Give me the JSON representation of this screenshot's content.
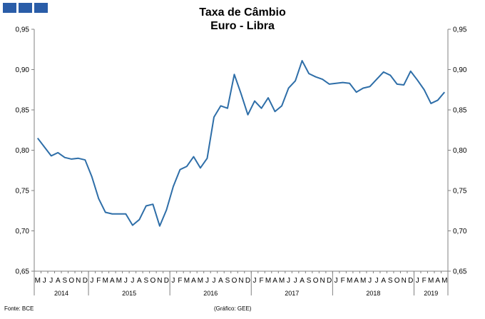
{
  "header": {
    "title_line1": "Taxa de Câmbio",
    "title_line2": "Euro - Libra"
  },
  "footer": {
    "source": "Fonte: BCE",
    "credit": "(Gráfico: GEE)"
  },
  "chart_data": {
    "type": "line",
    "title": "Taxa de Câmbio Euro - Libra",
    "ylim": [
      0.65,
      0.95
    ],
    "yticks": [
      "0,65",
      "0,70",
      "0,75",
      "0,80",
      "0,85",
      "0,90",
      "0,95"
    ],
    "ytick_values": [
      0.65,
      0.7,
      0.75,
      0.8,
      0.85,
      0.9,
      0.95
    ],
    "grid": false,
    "line_color": "#2e6ea8",
    "x": [
      "M",
      "J",
      "J",
      "A",
      "S",
      "O",
      "N",
      "D",
      "J",
      "F",
      "M",
      "A",
      "M",
      "J",
      "J",
      "A",
      "S",
      "O",
      "N",
      "D",
      "J",
      "F",
      "M",
      "A",
      "M",
      "J",
      "J",
      "A",
      "S",
      "O",
      "N",
      "D",
      "J",
      "F",
      "M",
      "A",
      "M",
      "J",
      "J",
      "A",
      "S",
      "O",
      "N",
      "D",
      "J",
      "F",
      "M",
      "A",
      "M",
      "J",
      "J",
      "A",
      "S",
      "O",
      "N",
      "D",
      "J",
      "F",
      "M",
      "A",
      "M"
    ],
    "years": [
      {
        "label": "2014",
        "start": 0,
        "count": 8
      },
      {
        "label": "2015",
        "start": 8,
        "count": 12
      },
      {
        "label": "2016",
        "start": 20,
        "count": 12
      },
      {
        "label": "2017",
        "start": 32,
        "count": 12
      },
      {
        "label": "2018",
        "start": 44,
        "count": 12
      },
      {
        "label": "2019",
        "start": 56,
        "count": 5
      }
    ],
    "values": [
      0.815,
      0.804,
      0.793,
      0.797,
      0.791,
      0.789,
      0.79,
      0.788,
      0.767,
      0.74,
      0.723,
      0.721,
      0.721,
      0.721,
      0.707,
      0.714,
      0.731,
      0.733,
      0.706,
      0.726,
      0.755,
      0.776,
      0.78,
      0.792,
      0.778,
      0.79,
      0.841,
      0.855,
      0.852,
      0.894,
      0.87,
      0.844,
      0.861,
      0.852,
      0.865,
      0.848,
      0.855,
      0.877,
      0.886,
      0.911,
      0.895,
      0.891,
      0.888,
      0.882,
      0.883,
      0.884,
      0.883,
      0.872,
      0.877,
      0.879,
      0.888,
      0.897,
      0.893,
      0.882,
      0.881,
      0.898,
      0.887,
      0.875,
      0.858,
      0.862,
      0.872
    ]
  }
}
